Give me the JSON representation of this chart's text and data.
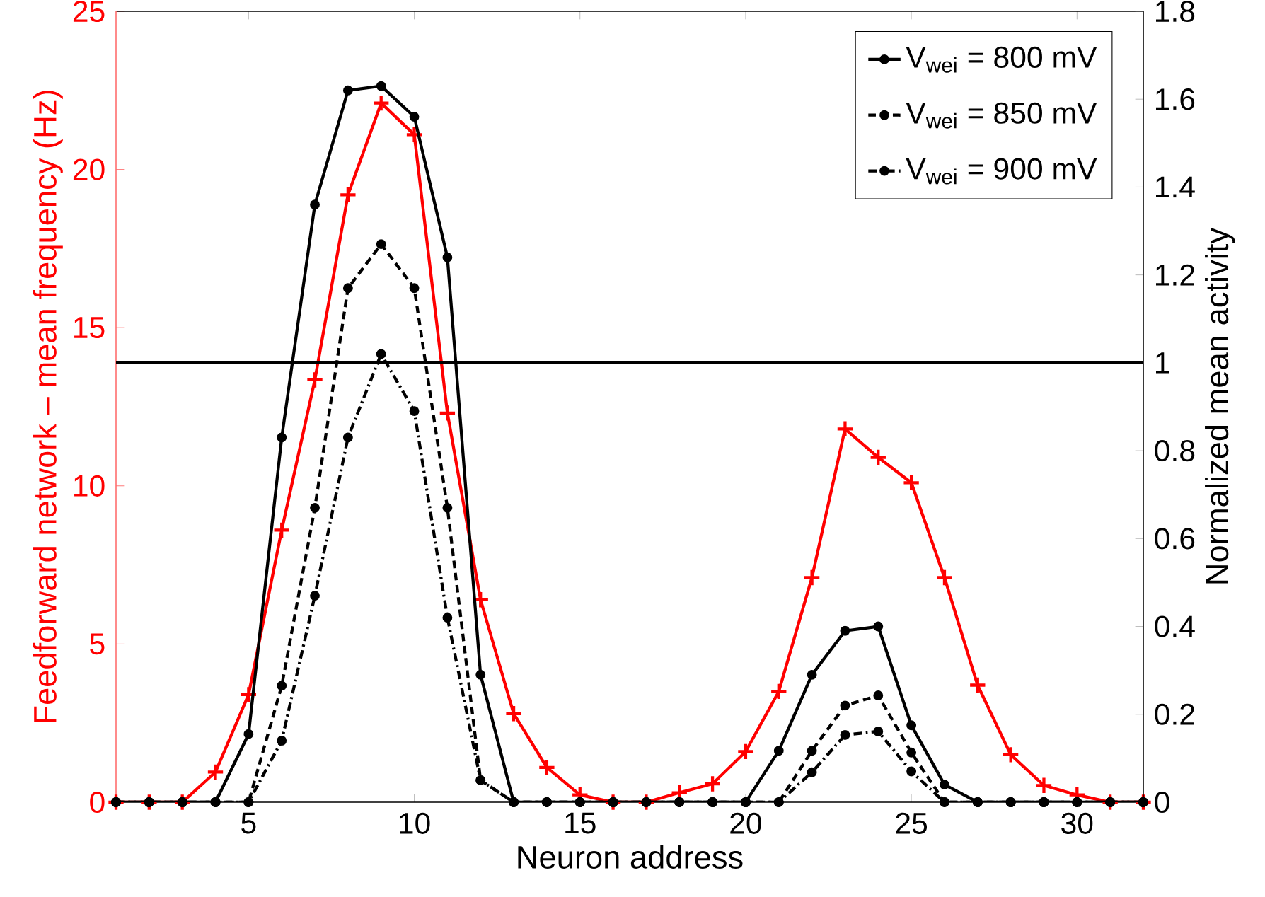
{
  "chart_data": {
    "type": "line",
    "xlabel": "Neuron address",
    "ylabel": "Feedforward network – mean frequency (Hz)",
    "y2label": "Normalized mean activity",
    "x": [
      1,
      2,
      3,
      4,
      5,
      6,
      7,
      8,
      9,
      10,
      11,
      12,
      13,
      14,
      15,
      16,
      17,
      18,
      19,
      20,
      21,
      22,
      23,
      24,
      25,
      26,
      27,
      28,
      29,
      30,
      31,
      32
    ],
    "xlim": [
      1,
      32
    ],
    "xticks": [
      5,
      10,
      15,
      20,
      25,
      30
    ],
    "ylim": [
      0,
      25
    ],
    "yticks": [
      0,
      5,
      10,
      15,
      20,
      25
    ],
    "y2lim": [
      0,
      1.8
    ],
    "y2ticks": [
      0,
      0.2,
      0.4,
      0.6,
      0.8,
      1,
      1.2,
      1.4,
      1.6,
      1.8
    ],
    "series": [
      {
        "color": "#ff0000",
        "marker": "cross",
        "line_style": "solid",
        "values": [
          0,
          0,
          0,
          0.95,
          3.4,
          8.6,
          13.35,
          19.2,
          22.1,
          21.1,
          12.3,
          6.4,
          2.8,
          1.1,
          0.23,
          0,
          0,
          0.3,
          0.58,
          1.6,
          3.5,
          7.1,
          11.8,
          10.9,
          10.1,
          7.1,
          3.7,
          1.5,
          0.53,
          0.23,
          0,
          0
        ]
      },
      {
        "name": "V$_{wei}$ = 800 mV",
        "color": "#000000",
        "axis": "y2",
        "marker": "circle",
        "line_style": "solid",
        "values": [
          0,
          0,
          0,
          0,
          0.155,
          0.83,
          1.36,
          1.62,
          1.63,
          1.56,
          1.24,
          0.29,
          0,
          0,
          0,
          0,
          0,
          0,
          0,
          0,
          0.117,
          0.29,
          0.39,
          0.4,
          0.175,
          0.04,
          0,
          0,
          0,
          0,
          0,
          0
        ]
      },
      {
        "name": "V$_{wei}$ = 850 mV",
        "color": "#000000",
        "axis": "y2",
        "marker": "circle",
        "line_style": "dashed",
        "values": [
          0,
          0,
          0,
          0,
          0,
          0.265,
          0.67,
          1.17,
          1.27,
          1.17,
          0.67,
          0.05,
          0,
          0,
          0,
          0,
          0,
          0,
          0,
          0,
          0,
          0.117,
          0.22,
          0.243,
          0.113,
          0,
          0,
          0,
          0,
          0,
          0,
          0
        ]
      },
      {
        "name": "V$_{wei}$ = 900 mV",
        "color": "#000000",
        "axis": "y2",
        "marker": "circle",
        "line_style": "dashdot",
        "values": [
          0,
          0,
          0,
          0,
          0,
          0.14,
          0.47,
          0.83,
          1.02,
          0.89,
          0.42,
          0.05,
          0,
          0,
          0,
          0,
          0,
          0,
          0,
          0,
          0,
          0.068,
          0.153,
          0.161,
          0.07,
          0,
          0,
          0,
          0,
          0,
          0,
          0
        ]
      }
    ],
    "ref_lines": [
      {
        "axis": "y2",
        "value": 1,
        "color": "#000000"
      }
    ],
    "legend": "top right"
  }
}
